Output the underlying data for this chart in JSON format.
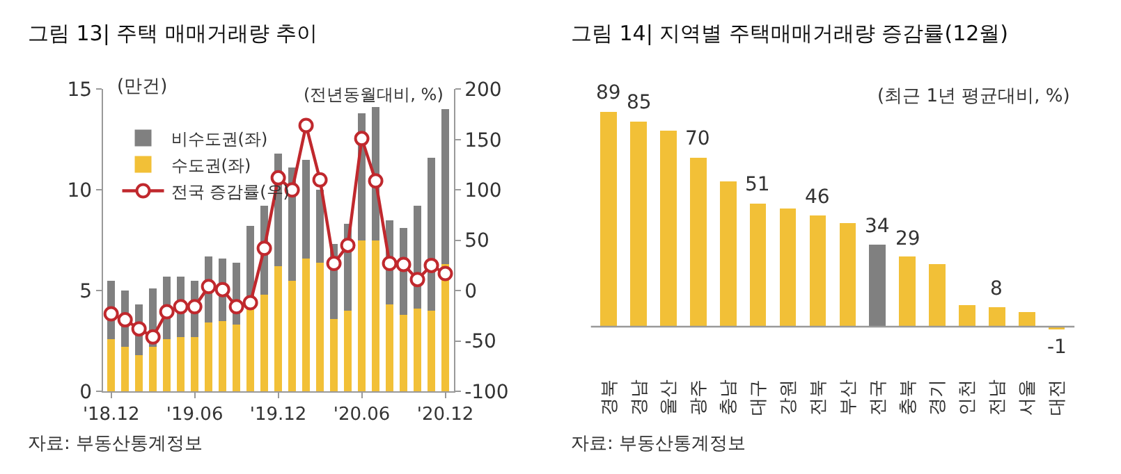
{
  "chart_data": [
    {
      "type": "bar",
      "title": "그림 13| 주택 매매거래량 추이",
      "stacked": true,
      "categories": [
        "'18.12",
        null,
        null,
        null,
        null,
        null,
        "'19.06",
        null,
        null,
        null,
        null,
        null,
        "'19.12",
        null,
        null,
        null,
        null,
        null,
        "'20.06",
        null,
        null,
        null,
        null,
        null,
        "'20.12"
      ],
      "series": [
        {
          "name": "수도권(좌)",
          "color": "#f2c037",
          "values": [
            2.6,
            2.2,
            1.8,
            2.2,
            2.6,
            2.7,
            2.7,
            3.4,
            3.5,
            3.3,
            4.1,
            4.8,
            6.2,
            5.5,
            6.6,
            6.4,
            3.6,
            4.0,
            7.5,
            7.5,
            4.3,
            3.8,
            4.1,
            4.0,
            6.3
          ]
        },
        {
          "name": "비수도권(좌)",
          "color": "#808080",
          "values": [
            2.9,
            2.8,
            2.5,
            2.9,
            3.1,
            3.0,
            2.8,
            3.3,
            3.1,
            3.1,
            4.1,
            4.4,
            5.6,
            5.6,
            4.9,
            3.6,
            3.7,
            4.3,
            6.3,
            6.6,
            4.2,
            4.3,
            5.1,
            7.6,
            7.7
          ]
        },
        {
          "name": "전국 증감률(우)",
          "type": "line",
          "axis": "y2",
          "color": "#c0282d",
          "marker": "circle",
          "values": [
            -23,
            -29,
            -38,
            -46,
            -21,
            -16,
            -16,
            4,
            1,
            -16,
            -12,
            42,
            112,
            100,
            164,
            110,
            27,
            45,
            151,
            109,
            27,
            26,
            11,
            25,
            17
          ]
        }
      ],
      "ylabel": "(만건)",
      "y2label": "(전년동월대비, %)",
      "ylim": [
        0,
        15
      ],
      "yticks": [
        0,
        5,
        10,
        15
      ],
      "y2lim": [
        -100,
        200
      ],
      "y2ticks": [
        -100,
        -50,
        0,
        50,
        100,
        150,
        200
      ],
      "legend": "top left",
      "annotations": [
        "자료: 부동산통계정보"
      ]
    },
    {
      "type": "bar",
      "title": "그림 14| 지역별 주택매매거래량 증감률(12월)",
      "categories": [
        "경북",
        "경남",
        "울산",
        "광주",
        "충남",
        "대구",
        "강원",
        "전북",
        "부산",
        "전국",
        "충북",
        "경기",
        "인천",
        "전남",
        "서울",
        "대전"
      ],
      "values": [
        89,
        85,
        81,
        70,
        60,
        51,
        49,
        46,
        43,
        34,
        29,
        26,
        9,
        8,
        6,
        -1
      ],
      "colors": [
        "#f2c037",
        "#f2c037",
        "#f2c037",
        "#f2c037",
        "#f2c037",
        "#f2c037",
        "#f2c037",
        "#f2c037",
        "#f2c037",
        "#808080",
        "#f2c037",
        "#f2c037",
        "#f2c037",
        "#f2c037",
        "#f2c037",
        "#f2c037"
      ],
      "value_labels": [
        "89",
        "85",
        null,
        "70",
        null,
        "51",
        null,
        "46",
        null,
        "34",
        "29",
        null,
        null,
        "8",
        null,
        "-1"
      ],
      "annotations": [
        "(최근 1년 평균대비, %)",
        "자료: 부동산통계정보"
      ]
    }
  ]
}
